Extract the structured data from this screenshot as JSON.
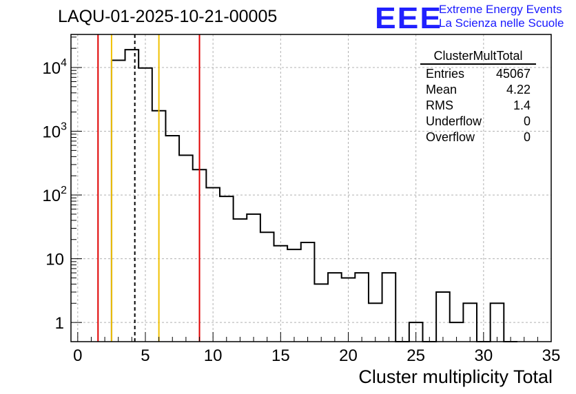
{
  "run_title": "LAQU-01-2025-10-21-00005",
  "logo": {
    "text": "EEE",
    "line1": "Extreme Energy Events",
    "line2": "La Scienza nelle Scuole",
    "color": "#1a1aff"
  },
  "stats_box": {
    "title": "ClusterMultTotal",
    "rows": [
      {
        "label": "Entries",
        "value": "45067"
      },
      {
        "label": "Mean",
        "value": "4.22"
      },
      {
        "label": "RMS",
        "value": "1.4"
      },
      {
        "label": "Underflow",
        "value": "0"
      },
      {
        "label": "Overflow",
        "value": "0"
      }
    ]
  },
  "chart_data": {
    "type": "histogram",
    "title": "LAQU-01-2025-10-21-00005",
    "xlabel": "Cluster multiplicity Total",
    "ylabel": "",
    "xlim": [
      -0.5,
      35
    ],
    "ylim": [
      0.5,
      33000
    ],
    "log_y": true,
    "grid": true,
    "bin_width": 1,
    "bin_low_edges": [
      2.5,
      3.5,
      4.5,
      5.5,
      6.5,
      7.5,
      8.5,
      9.5,
      10.5,
      11.5,
      12.5,
      13.5,
      14.5,
      15.5,
      16.5,
      17.5,
      18.5,
      19.5,
      20.5,
      21.5,
      22.5,
      23.5,
      24.5,
      25.5,
      26.5,
      27.5,
      28.5,
      29.5,
      30.5,
      31.5
    ],
    "counts": [
      13000,
      19000,
      9800,
      2100,
      850,
      420,
      250,
      130,
      95,
      42,
      50,
      26,
      16,
      14,
      18,
      4,
      6,
      5,
      6,
      2,
      6,
      0,
      1,
      0,
      3,
      1,
      2,
      0,
      2,
      0
    ],
    "x_ticks": [
      "0",
      "5",
      "10",
      "15",
      "20",
      "25",
      "30",
      "35"
    ],
    "x_tick_values": [
      0,
      5,
      10,
      15,
      20,
      25,
      30,
      35
    ],
    "y_ticks": [
      {
        "value": 1,
        "base": "1",
        "exp": ""
      },
      {
        "value": 10,
        "base": "10",
        "exp": ""
      },
      {
        "value": 100,
        "base": "10",
        "exp": "2"
      },
      {
        "value": 1000,
        "base": "10",
        "exp": "3"
      },
      {
        "value": 10000,
        "base": "10",
        "exp": "4"
      }
    ],
    "vertical_lines": [
      {
        "x": 1.5,
        "color": "#e00000",
        "style": "solid"
      },
      {
        "x": 2.5,
        "color": "#f0c000",
        "style": "solid"
      },
      {
        "x": 4.22,
        "color": "#000000",
        "style": "dashed"
      },
      {
        "x": 6.0,
        "color": "#f0c000",
        "style": "solid"
      },
      {
        "x": 9.0,
        "color": "#e00000",
        "style": "solid"
      }
    ],
    "legend": "top-right"
  }
}
